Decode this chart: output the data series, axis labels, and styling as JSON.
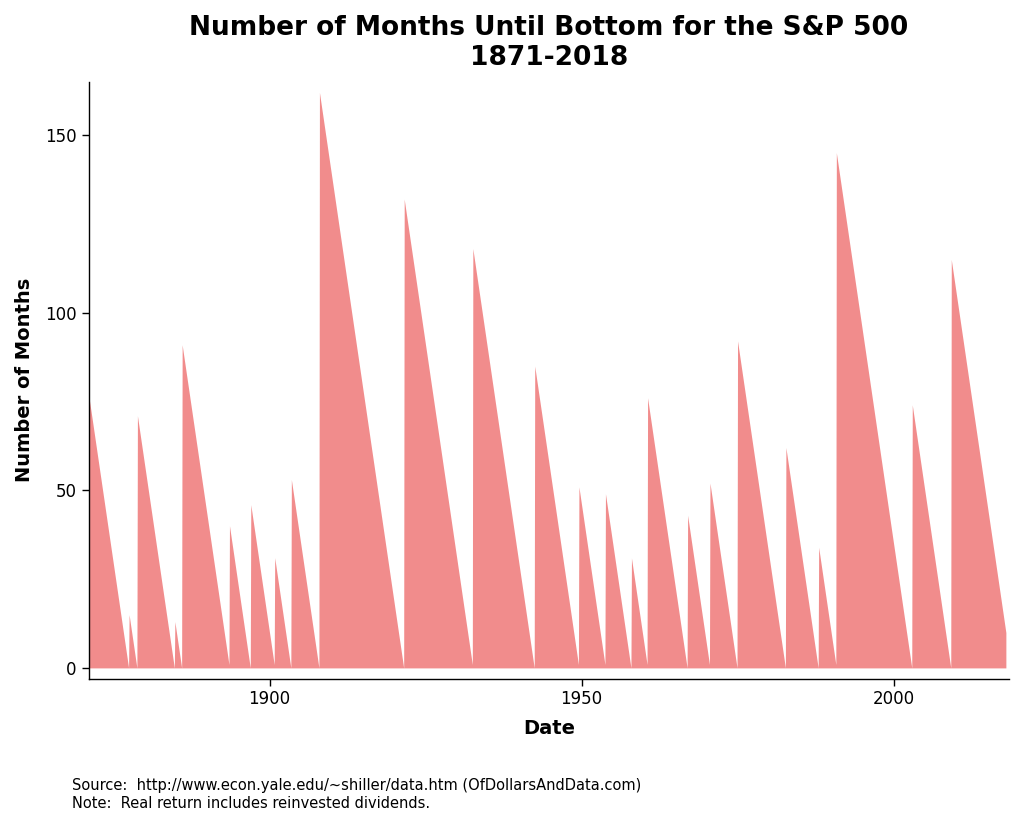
{
  "title_line1": "Number of Months Until Bottom for the S&P 500",
  "title_line2": "1871-2018",
  "xlabel": "Date",
  "ylabel": "Number of Months",
  "source_text": "Source:  http://www.econ.yale.edu/~shiller/data.htm (OfDollarsAndData.com)\nNote:  Real return includes reinvested dividends.",
  "fill_color": "#F08080",
  "fill_alpha": 0.9,
  "background_color": "#FFFFFF",
  "ylim": [
    -3,
    165
  ],
  "start_year": 1871,
  "end_year": 2018,
  "bottoms": [
    1877.42,
    1878.75,
    1884.75,
    1885.92,
    1893.58,
    1896.92,
    1900.83,
    1903.42,
    1907.92,
    1921.5,
    1932.58,
    1942.42,
    1949.58,
    1953.83,
    1957.92,
    1960.58,
    1966.92,
    1970.58,
    1974.92,
    1982.67,
    1987.92,
    1990.83,
    2002.92,
    2009.17,
    2018.83
  ],
  "title_fontsize": 19,
  "axis_label_fontsize": 14,
  "tick_fontsize": 12,
  "source_fontsize": 10.5,
  "xticks": [
    1900,
    1950,
    2000
  ],
  "yticks": [
    0,
    50,
    100,
    150
  ]
}
